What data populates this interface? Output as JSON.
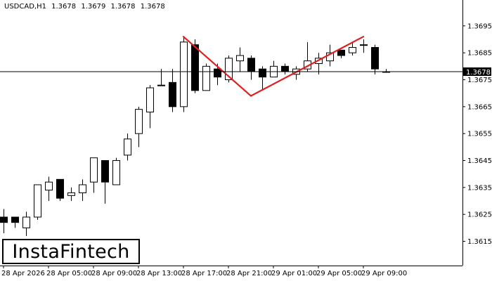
{
  "header": {
    "symbol": "USDCAD,H1",
    "open": "1.3678",
    "high": "1.3679",
    "low": "1.3678",
    "close": "1.3678"
  },
  "logo": {
    "text": "InstaFintech"
  },
  "colors": {
    "background": "#ffffff",
    "candle_up_fill": "#ffffff",
    "candle_down_fill": "#000000",
    "candle_outline": "#000000",
    "pattern_line": "#e02020",
    "price_line": "#000000",
    "price_tag_bg": "#000000",
    "price_tag_text": "#ffffff",
    "axis": "#000000"
  },
  "chart_data": {
    "type": "candlestick",
    "pattern": "double top",
    "symbol": "USDCAD",
    "timeframe": "H1",
    "ylim": [
      1.3606,
      1.3702
    ],
    "y_ticks": [
      "1.3695",
      "1.3685",
      "1.3675",
      "1.3665",
      "1.3655",
      "1.3645",
      "1.3635",
      "1.3625",
      "1.3615"
    ],
    "x_ticks": [
      "28 Apr 2026",
      "28 Apr 05:00",
      "28 Apr 09:00",
      "28 Apr 13:00",
      "28 Apr 17:00",
      "28 Apr 21:00",
      "29 Apr 01:00",
      "29 Apr 05:00",
      "29 Apr 09:00"
    ],
    "x_tick_bars": [
      0,
      4,
      8,
      12,
      16,
      20,
      24,
      28,
      32
    ],
    "current_price": 1.3678,
    "current_price_label": "1.3678",
    "candles": [
      {
        "o": 1.3624,
        "h": 1.3627,
        "l": 1.3618,
        "c": 1.3622
      },
      {
        "o": 1.3624,
        "h": 1.3624,
        "l": 1.362,
        "c": 1.3622
      },
      {
        "o": 1.362,
        "h": 1.3626,
        "l": 1.3617,
        "c": 1.3624
      },
      {
        "o": 1.3624,
        "h": 1.3636,
        "l": 1.3623,
        "c": 1.3636
      },
      {
        "o": 1.3634,
        "h": 1.3639,
        "l": 1.363,
        "c": 1.3637
      },
      {
        "o": 1.3638,
        "h": 1.3638,
        "l": 1.363,
        "c": 1.3631
      },
      {
        "o": 1.3632,
        "h": 1.3635,
        "l": 1.363,
        "c": 1.3633
      },
      {
        "o": 1.3633,
        "h": 1.3638,
        "l": 1.363,
        "c": 1.3636
      },
      {
        "o": 1.3637,
        "h": 1.3646,
        "l": 1.3633,
        "c": 1.3646
      },
      {
        "o": 1.3645,
        "h": 1.3645,
        "l": 1.3629,
        "c": 1.3637
      },
      {
        "o": 1.3636,
        "h": 1.3646,
        "l": 1.3636,
        "c": 1.3645
      },
      {
        "o": 1.3647,
        "h": 1.3655,
        "l": 1.3645,
        "c": 1.3653
      },
      {
        "o": 1.3655,
        "h": 1.3665,
        "l": 1.365,
        "c": 1.3664
      },
      {
        "o": 1.3663,
        "h": 1.3673,
        "l": 1.3657,
        "c": 1.3672
      },
      {
        "o": 1.3673,
        "h": 1.3679,
        "l": 1.3673,
        "c": 1.3673
      },
      {
        "o": 1.3674,
        "h": 1.3679,
        "l": 1.3663,
        "c": 1.3665
      },
      {
        "o": 1.3665,
        "h": 1.3691,
        "l": 1.3663,
        "c": 1.3689
      },
      {
        "o": 1.3688,
        "h": 1.369,
        "l": 1.367,
        "c": 1.3671
      },
      {
        "o": 1.3671,
        "h": 1.3681,
        "l": 1.3671,
        "c": 1.368
      },
      {
        "o": 1.3679,
        "h": 1.3681,
        "l": 1.3673,
        "c": 1.3676
      },
      {
        "o": 1.3675,
        "h": 1.3684,
        "l": 1.3674,
        "c": 1.3683
      },
      {
        "o": 1.3682,
        "h": 1.3687,
        "l": 1.3678,
        "c": 1.3684
      },
      {
        "o": 1.3683,
        "h": 1.3684,
        "l": 1.3675,
        "c": 1.3678
      },
      {
        "o": 1.3679,
        "h": 1.368,
        "l": 1.3671,
        "c": 1.3676
      },
      {
        "o": 1.3676,
        "h": 1.3682,
        "l": 1.3676,
        "c": 1.368
      },
      {
        "o": 1.368,
        "h": 1.3681,
        "l": 1.3677,
        "c": 1.3678
      },
      {
        "o": 1.3677,
        "h": 1.368,
        "l": 1.3675,
        "c": 1.3679
      },
      {
        "o": 1.3679,
        "h": 1.3689,
        "l": 1.3678,
        "c": 1.3682
      },
      {
        "o": 1.3681,
        "h": 1.3685,
        "l": 1.3677,
        "c": 1.3683
      },
      {
        "o": 1.3682,
        "h": 1.3688,
        "l": 1.368,
        "c": 1.3685
      },
      {
        "o": 1.3686,
        "h": 1.3686,
        "l": 1.3683,
        "c": 1.3684
      },
      {
        "o": 1.3685,
        "h": 1.3689,
        "l": 1.3684,
        "c": 1.3687
      },
      {
        "o": 1.3688,
        "h": 1.369,
        "l": 1.3685,
        "c": 1.3688
      },
      {
        "o": 1.3687,
        "h": 1.3688,
        "l": 1.3677,
        "c": 1.3679
      },
      {
        "o": 1.3678,
        "h": 1.3679,
        "l": 1.3678,
        "c": 1.3678
      }
    ],
    "pattern_lines": [
      {
        "x1": 16,
        "y1": 1.3691,
        "x2": 22,
        "y2": 1.3669
      },
      {
        "x1": 22,
        "y1": 1.3669,
        "x2": 32,
        "y2": 1.3691
      }
    ]
  }
}
